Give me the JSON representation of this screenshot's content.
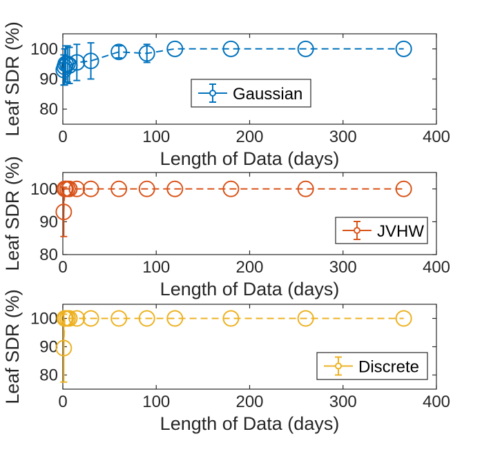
{
  "chart_data": [
    {
      "type": "scatter",
      "series": [
        {
          "name": "Gaussian",
          "color": "#0072BD",
          "x": [
            1,
            2,
            3,
            5,
            7,
            15,
            30,
            60,
            90,
            120,
            180,
            260,
            365
          ],
          "y": [
            93,
            94,
            95,
            95,
            94.5,
            95.5,
            96,
            99,
            98.5,
            100,
            100,
            100,
            100
          ],
          "err": [
            5,
            6,
            6,
            6,
            6,
            6,
            6,
            2,
            3,
            0,
            0,
            0,
            0
          ]
        }
      ],
      "xlabel": "Length of Data (days)",
      "ylabel": "Leaf SDR (%)",
      "xlim": [
        0,
        400
      ],
      "ylim": [
        75,
        105
      ],
      "xticks": [
        0,
        100,
        200,
        300,
        400
      ],
      "yticks": [
        80,
        90,
        100
      ],
      "legend_position": "middle-right"
    },
    {
      "type": "scatter",
      "series": [
        {
          "name": "JVHW",
          "color": "#D95319",
          "x": [
            1,
            2,
            3,
            5,
            7,
            15,
            30,
            60,
            90,
            120,
            180,
            260,
            365
          ],
          "y": [
            93,
            100,
            100,
            100,
            100,
            100,
            100,
            100,
            100,
            100,
            100,
            100,
            100
          ],
          "err": [
            7.5,
            0,
            0,
            0,
            0,
            0,
            0,
            0,
            0,
            0,
            0,
            0,
            0
          ]
        }
      ],
      "xlabel": "Length of Data (days)",
      "ylabel": "Leaf SDR (%)",
      "xlim": [
        0,
        400
      ],
      "ylim": [
        80,
        105
      ],
      "xticks": [
        0,
        100,
        200,
        300,
        400
      ],
      "yticks": [
        80,
        90,
        100
      ],
      "legend_position": "bottom-right"
    },
    {
      "type": "scatter",
      "series": [
        {
          "name": "Discrete",
          "color": "#EDB120",
          "x": [
            1,
            2,
            3,
            5,
            7,
            15,
            30,
            60,
            90,
            120,
            180,
            260,
            365
          ],
          "y": [
            89.5,
            100,
            100,
            100,
            100,
            100,
            100,
            100,
            100,
            100,
            100,
            100,
            100
          ],
          "err": [
            12,
            0,
            0,
            0,
            0,
            0,
            0,
            0,
            0,
            0,
            0,
            0,
            0
          ]
        }
      ],
      "xlabel": "Length of Data (days)",
      "ylabel": "Leaf SDR (%)",
      "xlim": [
        0,
        400
      ],
      "ylim": [
        75,
        105
      ],
      "xticks": [
        0,
        100,
        200,
        300,
        400
      ],
      "yticks": [
        80,
        90,
        100
      ],
      "legend_position": "bottom-right"
    }
  ]
}
